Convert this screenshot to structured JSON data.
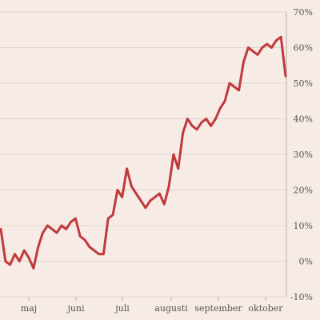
{
  "chart_data": {
    "type": "line",
    "title": "",
    "xlabel": "",
    "ylabel": "",
    "x_tick_labels": [
      "maj",
      "juni",
      "juli",
      "augusti",
      "september",
      "oktober"
    ],
    "y_ticks": [
      -10,
      0,
      10,
      20,
      30,
      40,
      50,
      60,
      70
    ],
    "y_tick_labels": [
      "-10%",
      "0%",
      "10%",
      "20%",
      "30%",
      "40%",
      "50%",
      "60%",
      "70%"
    ],
    "ylim": [
      -10,
      70
    ],
    "grid": "horizontal",
    "line_color": "#c0393b",
    "series": [
      {
        "values": [
          9,
          0,
          -1,
          2,
          0,
          3,
          1,
          -2,
          4,
          8,
          10,
          9,
          8,
          10,
          9,
          11,
          12,
          7,
          6,
          4,
          3,
          2,
          2,
          12,
          13,
          20,
          18,
          26,
          21,
          19,
          17,
          15,
          17,
          18,
          19,
          16,
          21,
          30,
          26,
          36,
          40,
          38,
          37,
          39,
          40,
          38,
          40,
          43,
          45,
          50,
          49,
          48,
          56,
          60,
          59,
          58,
          60,
          61,
          60,
          62,
          63,
          52
        ]
      }
    ]
  }
}
